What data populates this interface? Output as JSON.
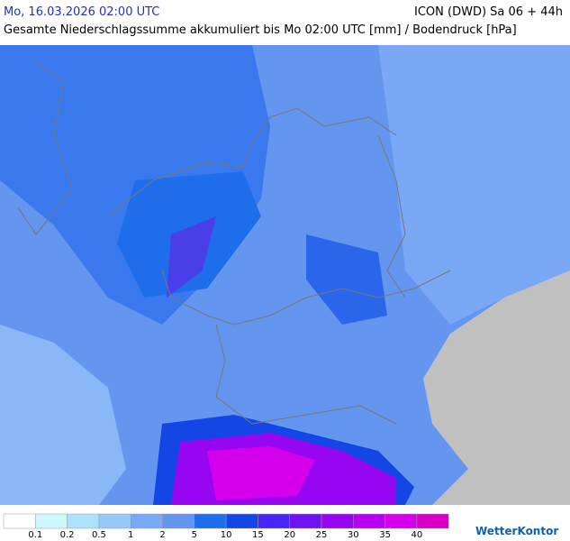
{
  "header": {
    "datetime": "Mo, 16.03.2026 02:00 UTC",
    "model": "ICON (DWD) Sa 06 + 44h",
    "subtitle": "Gesamte Niederschlagssumme akkumuliert bis Mo 02:00 UTC [mm] / Bodendruck [hPa]"
  },
  "legend": {
    "labels": [
      "0.1",
      "0.2",
      "0.5",
      "1",
      "2",
      "5",
      "10",
      "15",
      "20",
      "25",
      "30",
      "35",
      "40"
    ],
    "colors": [
      "#ffffff",
      "#ccf8ff",
      "#aee2fc",
      "#96c8fa",
      "#78aaf5",
      "#6496f0",
      "#1e6eeb",
      "#1446e6",
      "#4626f0",
      "#6e12f0",
      "#9606f0",
      "#b800f0",
      "#d400ec",
      "#d800c4"
    ]
  },
  "brand": "WetterKontor"
}
